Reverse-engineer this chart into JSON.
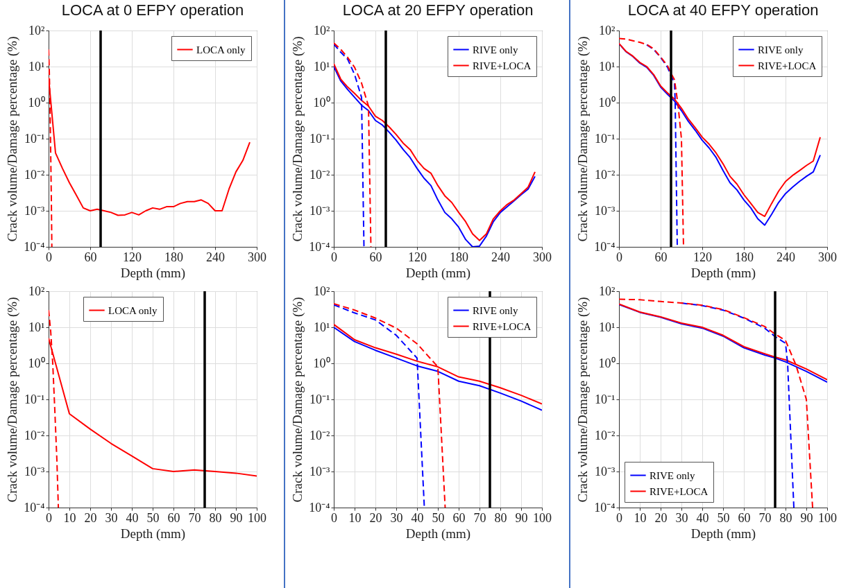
{
  "chart_data": [
    {
      "type": "line",
      "title": "LOCA at 0 EFPY operation",
      "xlabel": "Depth (mm)",
      "ylabel": "Crack volume/Damage percentage (%)",
      "log": "y",
      "grid": true,
      "legend": "top right",
      "xlim": [
        0,
        300
      ],
      "xticks": [
        0,
        60,
        120,
        180,
        240,
        300
      ],
      "ylim": [
        0.0001,
        100
      ],
      "yticks": [
        {
          "value": 0.0001,
          "label": "10⁻⁴"
        },
        {
          "value": 0.001,
          "label": "10⁻³"
        },
        {
          "value": 0.01,
          "label": "10⁻²"
        },
        {
          "value": 0.1,
          "label": "10⁻¹"
        },
        {
          "value": 1,
          "label": "10⁰"
        },
        {
          "value": 10,
          "label": "10¹"
        },
        {
          "value": 100,
          "label": "10²"
        }
      ],
      "ref_lines": [
        {
          "axis": "x",
          "value": 75,
          "color": "#000000"
        }
      ],
      "series": [
        {
          "name": "LOCA only",
          "color": "#ff0000",
          "line_style": "solid",
          "x": [
            0,
            10,
            20,
            30,
            40,
            50,
            60,
            70,
            80,
            90,
            100,
            110,
            120,
            130,
            140,
            150,
            160,
            170,
            180,
            190,
            200,
            210,
            220,
            230,
            240,
            250,
            260,
            270,
            280,
            290
          ],
          "values": [
            5,
            0.04,
            0.015,
            0.006,
            0.0027,
            0.0012,
            0.001,
            0.0011,
            0.001,
            0.0009,
            0.00075,
            0.00077,
            0.0009,
            0.00077,
            0.001,
            0.0012,
            0.0011,
            0.0013,
            0.0013,
            0.0016,
            0.0018,
            0.0018,
            0.002,
            0.0016,
            0.001,
            0.001,
            0.004,
            0.012,
            0.025,
            0.08
          ]
        },
        {
          "color": "#ff0000",
          "line_style": "dashed",
          "x": [
            0,
            1,
            2,
            3,
            4,
            4.7
          ],
          "values": [
            30,
            8,
            1,
            0.05,
            0.002,
            0.0001
          ]
        }
      ]
    },
    {
      "type": "line",
      "title": "LOCA at 20 EFPY operation",
      "xlabel": "Depth (mm)",
      "ylabel": "Crack volume/Damage percentage (%)",
      "log": "y",
      "grid": true,
      "legend": "top right",
      "xlim": [
        0,
        300
      ],
      "xticks": [
        0,
        60,
        120,
        180,
        240,
        300
      ],
      "ylim": [
        0.0001,
        100
      ],
      "yticks": [
        {
          "value": 0.0001,
          "label": "10⁻⁴"
        },
        {
          "value": 0.001,
          "label": "10⁻³"
        },
        {
          "value": 0.01,
          "label": "10⁻²"
        },
        {
          "value": 0.1,
          "label": "10⁻¹"
        },
        {
          "value": 1,
          "label": "10⁰"
        },
        {
          "value": 10,
          "label": "10¹"
        },
        {
          "value": 100,
          "label": "10²"
        }
      ],
      "ref_lines": [
        {
          "axis": "x",
          "value": 75,
          "color": "#000000"
        }
      ],
      "series": [
        {
          "name": "RIVE only",
          "color": "#0000ff",
          "line_style": "solid",
          "x": [
            0,
            10,
            20,
            30,
            40,
            50,
            60,
            70,
            80,
            90,
            100,
            110,
            120,
            130,
            140,
            150,
            160,
            170,
            180,
            190,
            200,
            210,
            220,
            230,
            240,
            250,
            260,
            270,
            280,
            290
          ],
          "values": [
            10,
            4,
            2.3,
            1.4,
            0.85,
            0.6,
            0.32,
            0.24,
            0.15,
            0.09,
            0.05,
            0.03,
            0.015,
            0.008,
            0.005,
            0.002,
            0.0009,
            0.0006,
            0.00035,
            0.00016,
            0.0001,
            0.000105,
            0.0002,
            0.0005,
            0.0009,
            0.0013,
            0.0019,
            0.0028,
            0.004,
            0.009
          ]
        },
        {
          "name": "RIVE+LOCA",
          "color": "#ff0000",
          "line_style": "solid",
          "x": [
            0,
            10,
            20,
            30,
            40,
            50,
            60,
            70,
            80,
            90,
            100,
            110,
            120,
            130,
            140,
            150,
            160,
            170,
            180,
            190,
            200,
            210,
            220,
            230,
            240,
            250,
            260,
            270,
            280,
            290
          ],
          "values": [
            12,
            4.5,
            2.7,
            1.8,
            1.15,
            0.8,
            0.42,
            0.32,
            0.21,
            0.13,
            0.075,
            0.05,
            0.025,
            0.015,
            0.011,
            0.005,
            0.0026,
            0.0017,
            0.0009,
            0.0005,
            0.00023,
            0.00015,
            0.00023,
            0.0006,
            0.001,
            0.0015,
            0.002,
            0.003,
            0.0045,
            0.012
          ]
        },
        {
          "color": "#0000ff",
          "line_style": "dashed",
          "x": [
            0,
            10,
            20,
            30,
            40,
            43.5
          ],
          "values": [
            42,
            25,
            16,
            6,
            1.4,
            0.0001
          ]
        },
        {
          "color": "#ff0000",
          "line_style": "dashed",
          "x": [
            0,
            10,
            20,
            30,
            40,
            50,
            53.5
          ],
          "values": [
            45,
            30,
            18,
            9.5,
            3.5,
            0.8,
            0.0001
          ]
        }
      ]
    },
    {
      "type": "line",
      "title": "LOCA at 40 EFPY operation",
      "xlabel": "Depth (mm)",
      "ylabel": "Crack volume/Damage percentage (%)",
      "log": "y",
      "grid": true,
      "legend": "top right",
      "xlim": [
        0,
        300
      ],
      "xticks": [
        0,
        60,
        120,
        180,
        240,
        300
      ],
      "ylim": [
        0.0001,
        100
      ],
      "yticks": [
        {
          "value": 0.0001,
          "label": "10⁻⁴"
        },
        {
          "value": 0.001,
          "label": "10⁻³"
        },
        {
          "value": 0.01,
          "label": "10⁻²"
        },
        {
          "value": 0.1,
          "label": "10⁻¹"
        },
        {
          "value": 1,
          "label": "10⁰"
        },
        {
          "value": 10,
          "label": "10¹"
        },
        {
          "value": 100,
          "label": "10²"
        }
      ],
      "ref_lines": [
        {
          "axis": "x",
          "value": 75,
          "color": "#000000"
        }
      ],
      "series": [
        {
          "name": "RIVE only",
          "color": "#0000ff",
          "line_style": "solid",
          "x": [
            0,
            10,
            20,
            30,
            40,
            50,
            60,
            70,
            80,
            90,
            100,
            110,
            120,
            130,
            140,
            150,
            160,
            170,
            180,
            190,
            200,
            210,
            220,
            230,
            240,
            250,
            260,
            270,
            280,
            290
          ],
          "values": [
            43,
            26,
            19,
            12.5,
            9.5,
            5.7,
            2.7,
            1.7,
            1.1,
            0.6,
            0.3,
            0.17,
            0.09,
            0.055,
            0.03,
            0.013,
            0.006,
            0.0038,
            0.002,
            0.0012,
            0.0006,
            0.0004,
            0.0008,
            0.0017,
            0.003,
            0.0045,
            0.0065,
            0.009,
            0.012,
            0.035
          ]
        },
        {
          "name": "RIVE+LOCA",
          "color": "#ff0000",
          "line_style": "solid",
          "x": [
            0,
            10,
            20,
            30,
            40,
            50,
            60,
            70,
            80,
            90,
            100,
            110,
            120,
            130,
            140,
            150,
            160,
            170,
            180,
            190,
            200,
            210,
            220,
            230,
            240,
            250,
            260,
            270,
            280,
            290
          ],
          "values": [
            44,
            26.5,
            19.5,
            13,
            10,
            6,
            2.9,
            1.85,
            1.25,
            0.7,
            0.35,
            0.2,
            0.11,
            0.07,
            0.04,
            0.02,
            0.009,
            0.0055,
            0.0028,
            0.0016,
            0.0009,
            0.0007,
            0.0016,
            0.0035,
            0.0065,
            0.0095,
            0.013,
            0.018,
            0.024,
            0.11
          ]
        },
        {
          "color": "#0000ff",
          "line_style": "dashed",
          "x": [
            40,
            50,
            60,
            70,
            75,
            80,
            81,
            84
          ],
          "values": [
            40,
            30,
            18,
            9.5,
            5.5,
            3.6,
            1,
            0.0001
          ]
        },
        {
          "color": "#ff0000",
          "line_style": "dashed",
          "x": [
            0,
            10,
            20,
            30,
            40,
            50,
            60,
            70,
            75,
            80,
            85,
            90,
            93
          ],
          "values": [
            60,
            58,
            52,
            47,
            41,
            31,
            18.5,
            10.5,
            6.5,
            4.3,
            0.9,
            0.1,
            0.0001
          ]
        }
      ]
    },
    {
      "type": "line",
      "xlabel": "Depth (mm)",
      "ylabel": "Crack volume/Damage percentage (%)",
      "log": "y",
      "grid": true,
      "legend": "top",
      "xlim": [
        0,
        100
      ],
      "xticks": [
        0,
        10,
        20,
        30,
        40,
        50,
        60,
        70,
        80,
        90,
        100
      ],
      "ylim": [
        0.0001,
        100
      ],
      "yticks": [
        {
          "value": 0.0001,
          "label": "10⁻⁴"
        },
        {
          "value": 0.001,
          "label": "10⁻³"
        },
        {
          "value": 0.01,
          "label": "10⁻²"
        },
        {
          "value": 0.1,
          "label": "10⁻¹"
        },
        {
          "value": 1,
          "label": "10⁰"
        },
        {
          "value": 10,
          "label": "10¹"
        },
        {
          "value": 100,
          "label": "10²"
        }
      ],
      "ref_lines": [
        {
          "axis": "x",
          "value": 75,
          "color": "#000000"
        }
      ],
      "series": [
        {
          "name": "LOCA only",
          "color": "#ff0000",
          "line_style": "solid",
          "x": [
            0,
            10,
            20,
            30,
            40,
            50,
            60,
            70,
            80,
            90,
            100
          ],
          "values": [
            5,
            0.04,
            0.015,
            0.006,
            0.0027,
            0.0012,
            0.001,
            0.0011,
            0.001,
            0.0009,
            0.00075
          ]
        },
        {
          "color": "#ff0000",
          "line_style": "dashed",
          "x": [
            0,
            1,
            2,
            3,
            4,
            4.7
          ],
          "values": [
            30,
            8,
            1,
            0.05,
            0.002,
            0.0001
          ]
        }
      ]
    },
    {
      "type": "line",
      "xlabel": "Depth (mm)",
      "ylabel": "Crack volume/Damage percentage (%)",
      "log": "y",
      "grid": true,
      "legend": "top right",
      "xlim": [
        0,
        100
      ],
      "xticks": [
        0,
        10,
        20,
        30,
        40,
        50,
        60,
        70,
        80,
        90,
        100
      ],
      "ylim": [
        0.0001,
        100
      ],
      "yticks": [
        {
          "value": 0.0001,
          "label": "10⁻⁴"
        },
        {
          "value": 0.001,
          "label": "10⁻³"
        },
        {
          "value": 0.01,
          "label": "10⁻²"
        },
        {
          "value": 0.1,
          "label": "10⁻¹"
        },
        {
          "value": 1,
          "label": "10⁰"
        },
        {
          "value": 10,
          "label": "10¹"
        },
        {
          "value": 100,
          "label": "10²"
        }
      ],
      "ref_lines": [
        {
          "axis": "x",
          "value": 75,
          "color": "#000000"
        }
      ],
      "series": [
        {
          "name": "RIVE only",
          "color": "#0000ff",
          "line_style": "solid",
          "x": [
            0,
            10,
            20,
            30,
            40,
            50,
            60,
            70,
            80,
            90,
            100
          ],
          "values": [
            10,
            4,
            2.3,
            1.4,
            0.85,
            0.6,
            0.32,
            0.24,
            0.15,
            0.09,
            0.05
          ]
        },
        {
          "name": "RIVE+LOCA",
          "color": "#ff0000",
          "line_style": "solid",
          "x": [
            0,
            10,
            20,
            30,
            40,
            50,
            60,
            70,
            80,
            90,
            100
          ],
          "values": [
            12,
            4.5,
            2.7,
            1.8,
            1.15,
            0.8,
            0.42,
            0.32,
            0.21,
            0.13,
            0.075
          ]
        },
        {
          "color": "#0000ff",
          "line_style": "dashed",
          "x": [
            0,
            10,
            20,
            30,
            40,
            43.5
          ],
          "values": [
            42,
            25,
            16,
            6,
            1.4,
            0.0001
          ]
        },
        {
          "color": "#ff0000",
          "line_style": "dashed",
          "x": [
            0,
            10,
            20,
            30,
            40,
            50,
            53.5
          ],
          "values": [
            45,
            30,
            18,
            9.5,
            3.5,
            0.8,
            0.0001
          ]
        }
      ]
    },
    {
      "type": "line",
      "xlabel": "Depth (mm)",
      "ylabel": "Crack volume/Damage percentage (%)",
      "log": "y",
      "grid": true,
      "legend": "bottom left",
      "xlim": [
        0,
        100
      ],
      "xticks": [
        0,
        10,
        20,
        30,
        40,
        50,
        60,
        70,
        80,
        90,
        100
      ],
      "ylim": [
        0.0001,
        100
      ],
      "yticks": [
        {
          "value": 0.0001,
          "label": "10⁻⁴"
        },
        {
          "value": 0.001,
          "label": "10⁻³"
        },
        {
          "value": 0.01,
          "label": "10⁻²"
        },
        {
          "value": 0.1,
          "label": "10⁻¹"
        },
        {
          "value": 1,
          "label": "10⁰"
        },
        {
          "value": 10,
          "label": "10¹"
        },
        {
          "value": 100,
          "label": "10²"
        }
      ],
      "ref_lines": [
        {
          "axis": "x",
          "value": 75,
          "color": "#000000"
        }
      ],
      "series": [
        {
          "name": "RIVE only",
          "color": "#0000ff",
          "line_style": "solid",
          "x": [
            0,
            10,
            20,
            30,
            40,
            50,
            60,
            70,
            75,
            80,
            90,
            100
          ],
          "values": [
            43,
            26,
            19,
            12.5,
            9.5,
            5.7,
            2.7,
            1.7,
            1.4,
            1.1,
            0.6,
            0.3
          ]
        },
        {
          "name": "RIVE+LOCA",
          "color": "#ff0000",
          "line_style": "solid",
          "x": [
            0,
            10,
            20,
            30,
            40,
            50,
            60,
            70,
            75,
            80,
            90,
            100
          ],
          "values": [
            44,
            26.5,
            19.5,
            13,
            10,
            6,
            2.9,
            1.85,
            1.5,
            1.25,
            0.7,
            0.35
          ]
        },
        {
          "color": "#0000ff",
          "line_style": "dashed",
          "x": [
            30,
            40,
            50,
            60,
            70,
            75,
            80,
            81,
            84
          ],
          "values": [
            47,
            40,
            30,
            18,
            9.5,
            5.5,
            3.6,
            1,
            0.0001
          ]
        },
        {
          "color": "#ff0000",
          "line_style": "dashed",
          "x": [
            0,
            10,
            20,
            30,
            40,
            50,
            60,
            70,
            75,
            80,
            85,
            90,
            93
          ],
          "values": [
            60,
            58,
            52,
            47,
            41,
            31,
            18.5,
            10.5,
            6.5,
            4.3,
            0.9,
            0.1,
            0.0001
          ]
        }
      ]
    }
  ]
}
